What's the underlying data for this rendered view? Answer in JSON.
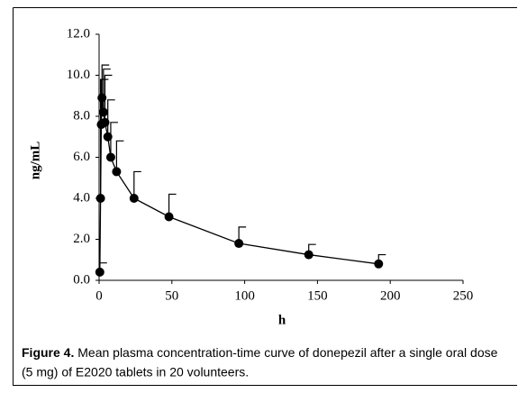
{
  "chart_data": {
    "type": "line",
    "y_label": "ng/mL",
    "x_label": "h",
    "caption_label": "Figure 4.",
    "caption": "Mean plasma concentration-time curve of donepezil after a single oral dose (5 mg) of E2020 tablets in 20 volunteers.",
    "x": [
      0.5,
      1,
      1.5,
      2,
      3,
      4,
      6,
      8,
      12,
      24,
      48,
      96,
      144,
      192
    ],
    "series": [
      {
        "color": "#000000",
        "values": [
          0.4,
          4.0,
          7.6,
          8.9,
          8.2,
          7.7,
          7.0,
          6.0,
          5.3,
          4.0,
          3.1,
          1.8,
          1.25,
          0.8
        ],
        "errors": [
          0.45,
          5.8,
          2.2,
          1.6,
          2.1,
          2.3,
          1.8,
          1.7,
          1.5,
          1.3,
          1.1,
          0.8,
          0.5,
          0.45
        ]
      }
    ],
    "xlim": [
      0,
      250
    ],
    "xticks": [
      0,
      50,
      100,
      150,
      200,
      250
    ],
    "ylim": [
      0,
      12
    ],
    "yticks": [
      {
        "value": 0,
        "label": "0.0"
      },
      {
        "value": 2,
        "label": "2.0"
      },
      {
        "value": 4,
        "label": "4.0"
      },
      {
        "value": 6,
        "label": "6.0"
      },
      {
        "value": 8,
        "label": "8.0"
      },
      {
        "value": 10,
        "label": "10.0"
      },
      {
        "value": 12,
        "label": "12.0"
      }
    ]
  }
}
